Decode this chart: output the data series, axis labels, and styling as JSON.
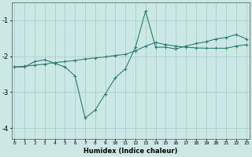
{
  "xlabel": "Humidex (Indice chaleur)",
  "x_values": [
    0,
    1,
    2,
    3,
    4,
    5,
    6,
    7,
    8,
    9,
    10,
    11,
    12,
    13,
    14,
    15,
    16,
    17,
    18,
    19,
    20,
    21,
    22,
    23
  ],
  "line1_y": [
    -2.3,
    -2.3,
    -2.15,
    -2.1,
    -2.2,
    -2.3,
    -2.55,
    -3.72,
    -3.5,
    -3.05,
    -2.6,
    -2.35,
    -1.75,
    -0.75,
    -1.75,
    -1.75,
    -1.8,
    -1.72,
    -1.65,
    -1.6,
    -1.52,
    -1.48,
    -1.4,
    -1.52
  ],
  "line2_y": [
    -2.3,
    -2.28,
    -2.25,
    -2.22,
    -2.18,
    -2.15,
    -2.12,
    -2.08,
    -2.05,
    -2.02,
    -1.98,
    -1.95,
    -1.85,
    -1.72,
    -1.62,
    -1.68,
    -1.72,
    -1.75,
    -1.77,
    -1.78,
    -1.78,
    -1.78,
    -1.72,
    -1.68
  ],
  "ylim": [
    -4.3,
    -0.5
  ],
  "xlim": [
    -0.3,
    23.3
  ],
  "yticks": [
    -4,
    -3,
    -2,
    -1
  ],
  "line_color": "#2d7d72",
  "bg_color": "#cce8e4",
  "grid_color": "#aacfcc",
  "markersize": 2.5,
  "linewidth": 0.8
}
